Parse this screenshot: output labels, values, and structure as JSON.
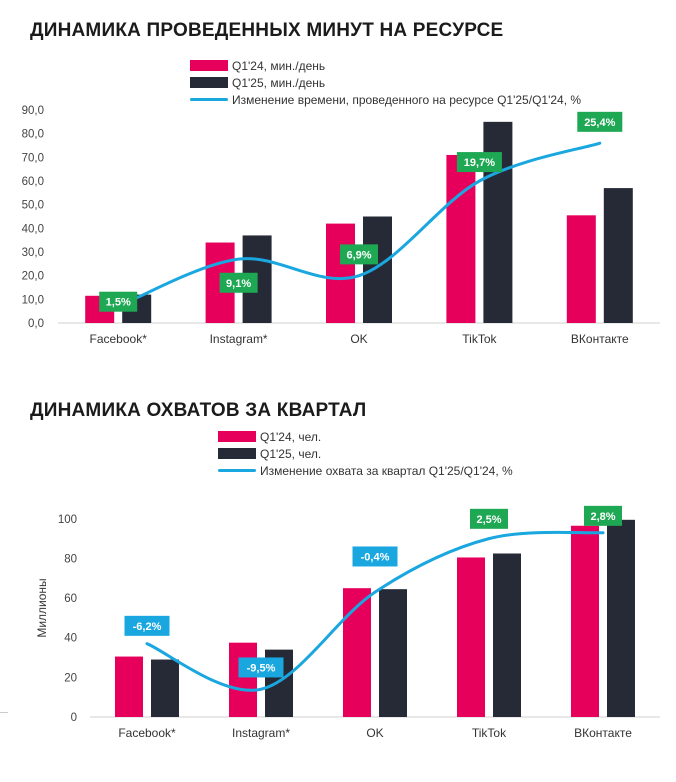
{
  "charts": [
    {
      "title": "ДИНАМИКА ПРОВЕДЕННЫХ МИНУТ НА РЕСУРСЕ",
      "legend": [
        "Q1'24, мин./день",
        "Q1'25, мин./день",
        "Изменение времени, проведенного на ресурсе Q1'25/Q1'24, %"
      ]
    },
    {
      "title": "ДИНАМИКА ОХВАТОВ ЗА КВАРТАЛ",
      "legend": [
        "Q1'24, чел.",
        "Q1'25, чел.",
        "Изменение охвата за квартал Q1'25/Q1'24, %"
      ]
    }
  ],
  "colors": {
    "q24": "#e6005c",
    "q25": "#262a36",
    "line": "#1aa7e0",
    "label_green": "#1fa854",
    "label_blue": "#1aa7e0"
  },
  "chart_data": [
    {
      "type": "bar",
      "title": "ДИНАМИКА ПРОВЕДЕННЫХ МИНУТ НА РЕСУРСЕ",
      "categories": [
        "Facebook*",
        "Instagram*",
        "OK",
        "TikTok",
        "ВКонтакте"
      ],
      "series": [
        {
          "name": "Q1'24, мин./день",
          "values": [
            11.5,
            34,
            42,
            71,
            45.5
          ]
        },
        {
          "name": "Q1'25, мин./день",
          "values": [
            12,
            37,
            45,
            85,
            57
          ]
        }
      ],
      "line_series": {
        "name": "Изменение времени, проведенного на ресурсе Q1'25/Q1'24, %",
        "values": [
          1.5,
          9.1,
          6.9,
          19.7,
          25.4
        ],
        "labels": [
          "1,5%",
          "9,1%",
          "6,9%",
          "19,7%",
          "25,4%"
        ],
        "curve_y_primary_axis": [
          7,
          27,
          20,
          60,
          76
        ],
        "label_y_primary_axis": [
          9,
          17,
          29,
          68,
          85
        ]
      },
      "ylim": [
        0,
        90
      ],
      "yticks": [
        "0,0",
        "10,0",
        "20,0",
        "30,0",
        "40,0",
        "50,0",
        "60,0",
        "70,0",
        "80,0",
        "90,0"
      ],
      "xlabel": "",
      "ylabel": "",
      "legend": "top"
    },
    {
      "type": "bar",
      "title": "ДИНАМИКА ОХВАТОВ ЗА КВАРТАЛ",
      "categories": [
        "Facebook*",
        "Instagram*",
        "OK",
        "TikTok",
        "ВКонтакте"
      ],
      "series": [
        {
          "name": "Q1'24, чел.",
          "values": [
            30.5,
            37.5,
            65,
            80.5,
            96.5
          ]
        },
        {
          "name": "Q1'25, чел.",
          "values": [
            29,
            34,
            64.5,
            82.5,
            99.5
          ]
        }
      ],
      "line_series": {
        "name": "Изменение охвата за квартал Q1'25/Q1'24, %",
        "values": [
          -6.2,
          -9.5,
          -0.4,
          2.5,
          2.8
        ],
        "labels": [
          "-6,2%",
          "-9,5%",
          "-0,4%",
          "2,5%",
          "2,8%"
        ],
        "curve_y_primary_axis": [
          37,
          14,
          63,
          90,
          93
        ],
        "label_y_primary_axis": [
          46,
          25,
          81,
          100,
          101.5
        ]
      },
      "ylim": [
        0,
        110
      ],
      "yticks": [
        "0",
        "20",
        "40",
        "60",
        "80",
        "100"
      ],
      "xlabel": "",
      "ylabel": "Миллионы",
      "legend": "top"
    }
  ]
}
